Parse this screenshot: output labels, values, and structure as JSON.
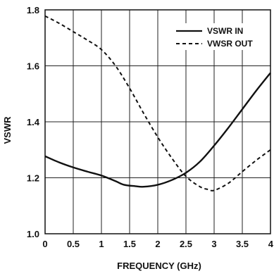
{
  "chart_data": {
    "type": "line",
    "title": "",
    "xlabel": "FREQUENCY (GHz)",
    "ylabel": "VSWR",
    "xlim": [
      0,
      4
    ],
    "ylim": [
      1.0,
      1.8
    ],
    "x_ticks": [
      "0",
      "0.5",
      "1",
      "1.5",
      "2",
      "2.5",
      "3",
      "3.5",
      "4"
    ],
    "y_ticks": [
      "1.0",
      "1.2",
      "1.4",
      "1.6",
      "1.8"
    ],
    "grid": true,
    "legend_position": "top-right",
    "series": [
      {
        "name": "VSWR IN",
        "style": "solid",
        "color": "#111111",
        "x": [
          0,
          0.25,
          0.5,
          0.75,
          1.0,
          1.25,
          1.4,
          1.6,
          1.75,
          2.0,
          2.25,
          2.5,
          2.75,
          3.0,
          3.25,
          3.5,
          3.75,
          4.0
        ],
        "y": [
          1.277,
          1.255,
          1.237,
          1.222,
          1.208,
          1.188,
          1.175,
          1.17,
          1.168,
          1.175,
          1.192,
          1.218,
          1.258,
          1.315,
          1.378,
          1.445,
          1.512,
          1.575
        ]
      },
      {
        "name": "VWSR OUT",
        "style": "dashed",
        "color": "#111111",
        "x": [
          0,
          0.25,
          0.5,
          0.75,
          1.0,
          1.25,
          1.5,
          1.75,
          2.0,
          2.25,
          2.5,
          2.75,
          2.9,
          3.0,
          3.25,
          3.5,
          3.75,
          4.0
        ],
        "y": [
          1.778,
          1.752,
          1.722,
          1.692,
          1.658,
          1.6,
          1.52,
          1.43,
          1.345,
          1.27,
          1.205,
          1.168,
          1.158,
          1.155,
          1.18,
          1.222,
          1.263,
          1.3
        ]
      }
    ]
  }
}
